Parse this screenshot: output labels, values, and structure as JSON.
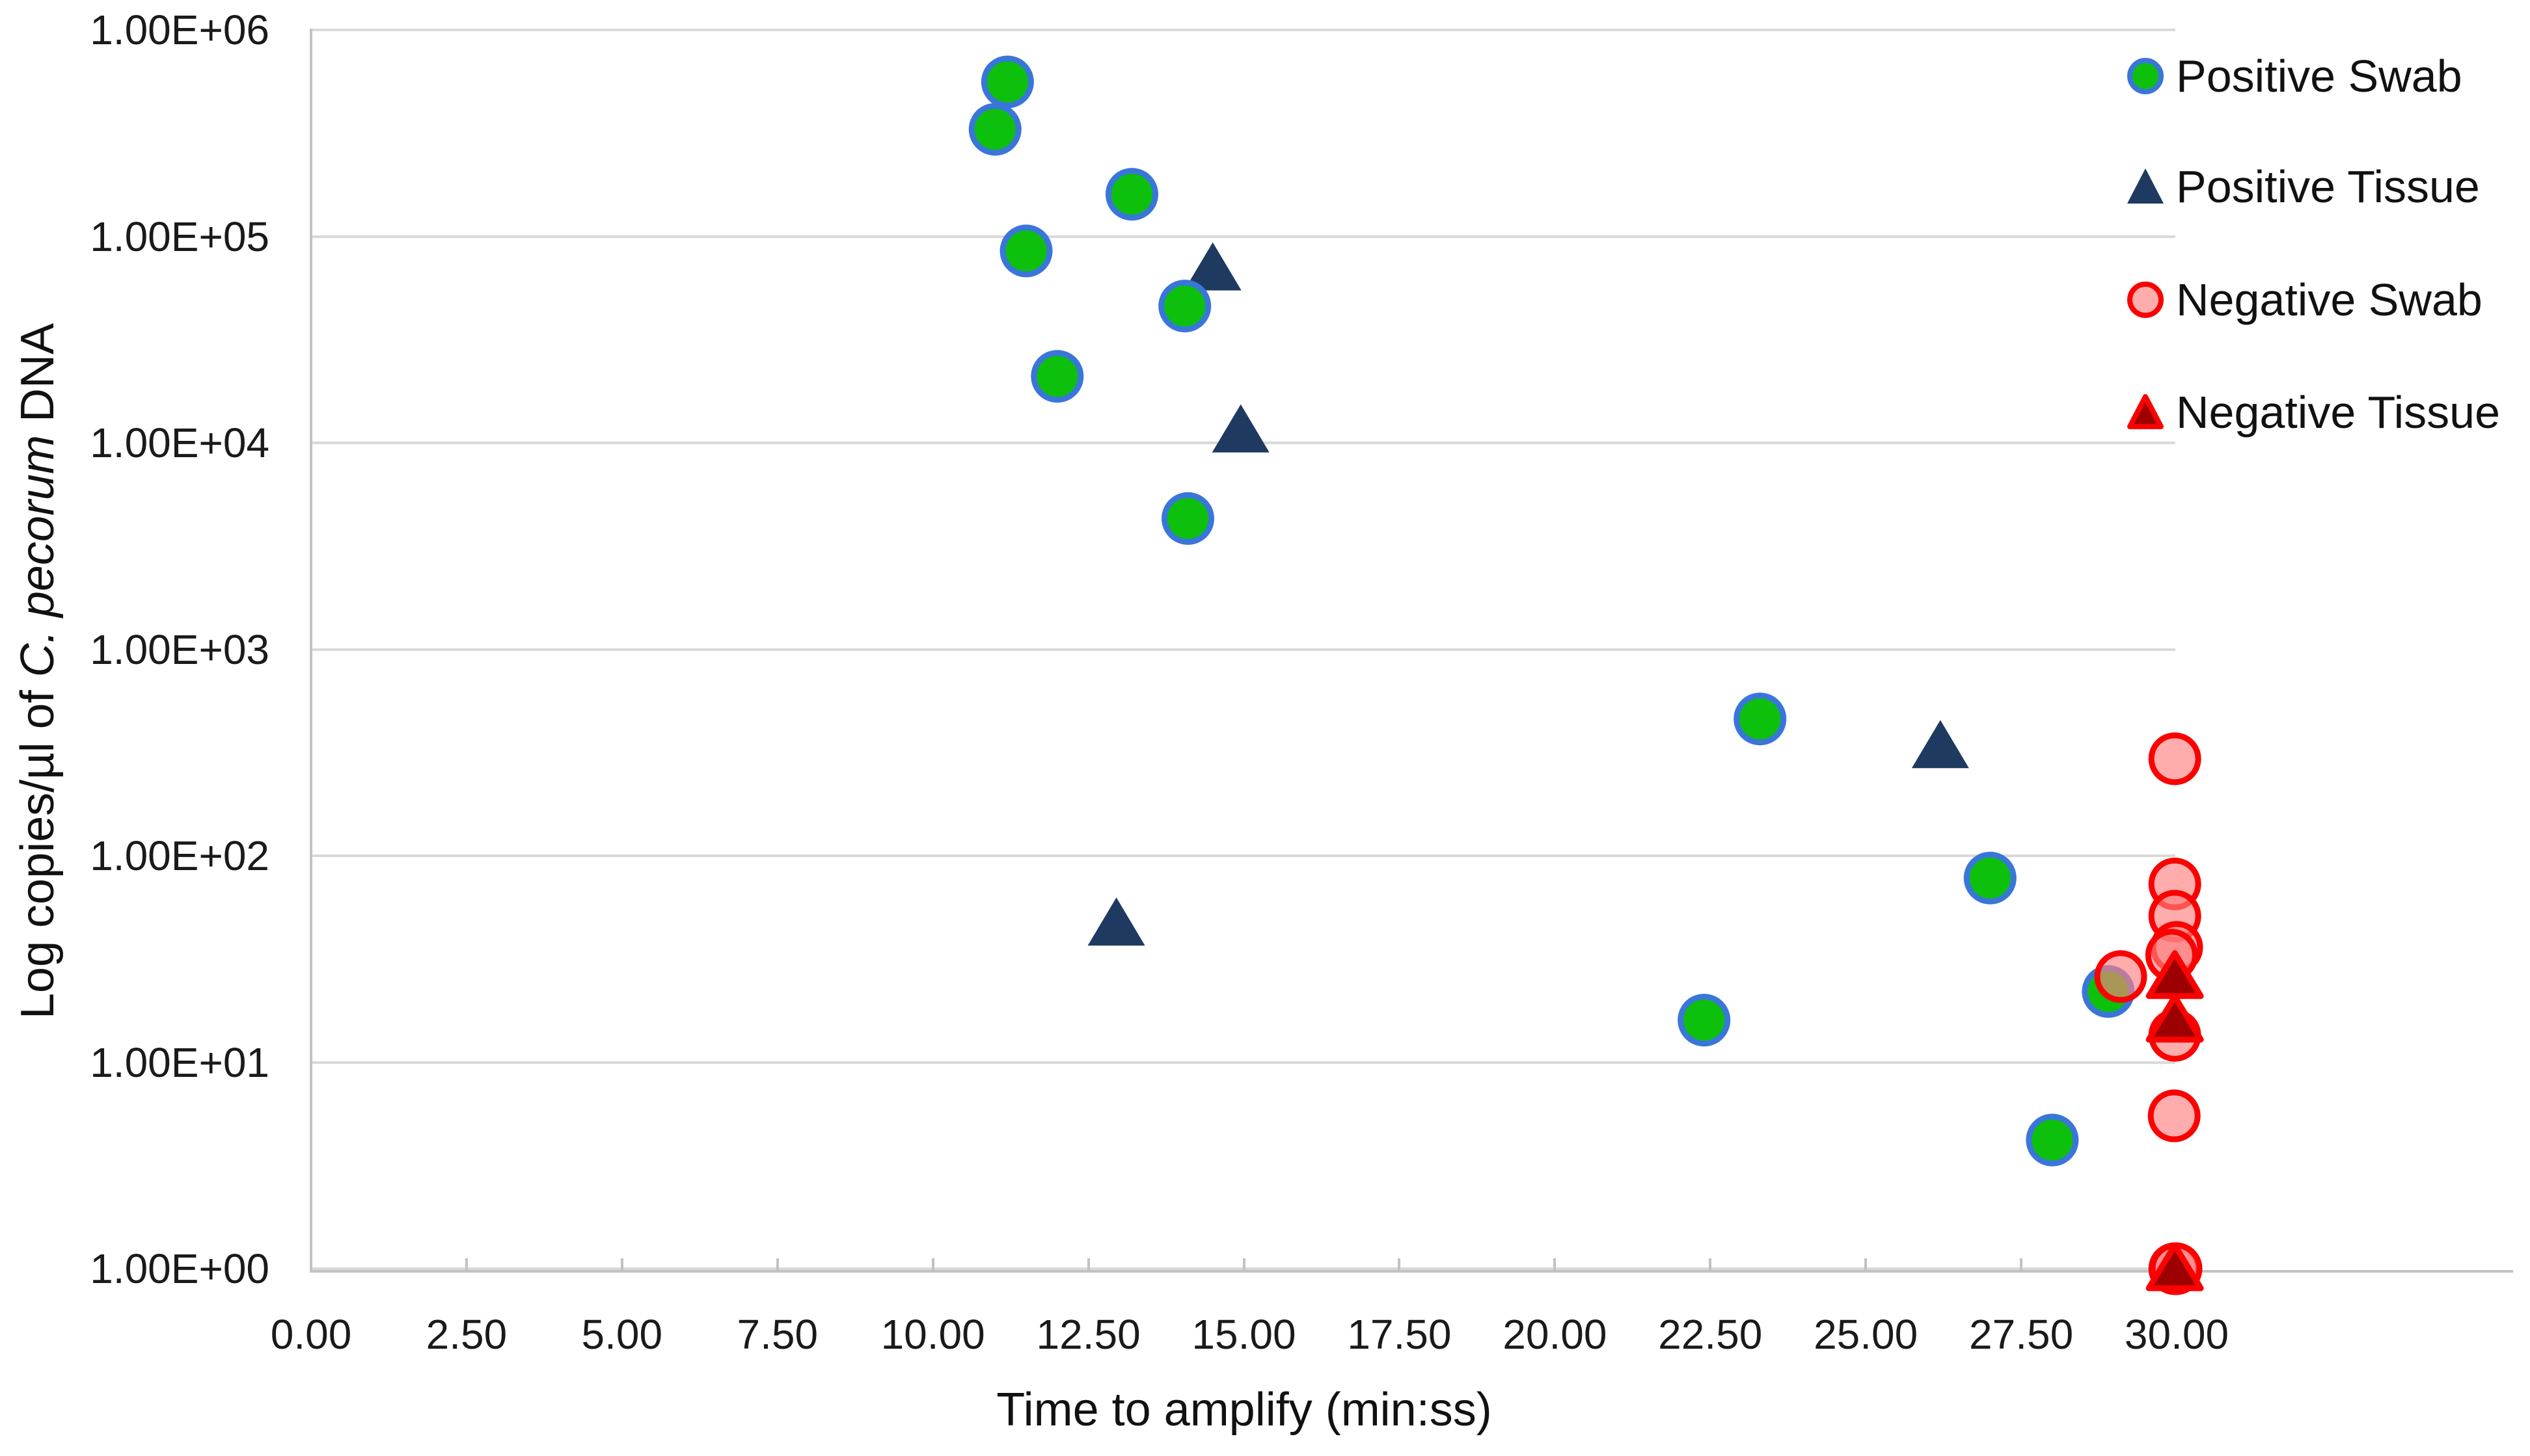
{
  "figure": {
    "background": "#ffffff",
    "x_axis": {
      "title": "Time to amplify (min:ss)",
      "tick_labels": [
        "0.00",
        "2.50",
        "5.00",
        "7.50",
        "10.00",
        "12.50",
        "15.00",
        "17.50",
        "20.00",
        "22.50",
        "25.00",
        "27.50",
        "30.00"
      ],
      "tick_values": [
        0,
        2.5,
        5,
        7.5,
        10,
        12.5,
        15,
        17.5,
        20,
        22.5,
        25,
        27.5,
        30
      ],
      "min": 0,
      "max": 30
    },
    "y_axis": {
      "title_parts": {
        "prefix": "Log copies/µl of ",
        "italic": "C. pecorum",
        "suffix": " DNA"
      },
      "tick_labels": [
        "1.00E+06",
        "1.00E+05",
        "1.00E+04",
        "1.00E+03",
        "1.00E+02",
        "1.00E+01",
        "1.00E+00"
      ],
      "tick_exponents": [
        6,
        5,
        4,
        3,
        2,
        1,
        0
      ],
      "scale": "log10"
    },
    "legend": [
      {
        "label": "Positive Swab",
        "marker": "circle",
        "fill": "#0cc00c",
        "stroke": "#3a76d9"
      },
      {
        "label": "Positive Tissue",
        "marker": "triangle",
        "fill": "#1f3a60",
        "stroke": "#1f3a60"
      },
      {
        "label": "Negative Swab",
        "marker": "circle",
        "fill": "#ffacac",
        "stroke": "#fb0202"
      },
      {
        "label": "Negative Tissue",
        "marker": "triangle",
        "fill": "#9c0000",
        "stroke": "#fb0202"
      }
    ],
    "colors": {
      "gridline": "#d9d9d9",
      "axis_line": "#c2c2c2",
      "text": "#1a1a1a"
    }
  },
  "chart_data": {
    "type": "scatter",
    "title": "",
    "xlabel": "Time to amplify (min:ss)",
    "ylabel": "Log copies/µl of C. pecorum DNA",
    "x_range": [
      0,
      30
    ],
    "y_range": [
      1,
      1000000
    ],
    "y_scale": "log",
    "grid": "horizontal-only",
    "legend_position": "upper-right-outside",
    "series": [
      {
        "name": "Positive Tissue",
        "marker": "triangle",
        "fill": "#1f3a60",
        "stroke": "#1f3a60",
        "points": [
          [
            14.5,
            70000
          ],
          [
            14.95,
            11500
          ],
          [
            26.2,
            340
          ],
          [
            12.95,
            47
          ]
        ]
      },
      {
        "name": "Positive Swab",
        "marker": "circle",
        "fill": "#0cc00c",
        "stroke": "#3a76d9",
        "points": [
          [
            11.2,
            560000
          ],
          [
            11.0,
            330000
          ],
          [
            13.2,
            160000
          ],
          [
            11.5,
            85000
          ],
          [
            14.05,
            46000
          ],
          [
            12.0,
            21000
          ],
          [
            14.1,
            4300
          ],
          [
            23.3,
            460
          ],
          [
            27.0,
            78
          ],
          [
            28.9,
            22
          ],
          [
            22.4,
            16
          ],
          [
            28.0,
            4.2
          ]
        ]
      },
      {
        "name": "Negative Swab",
        "marker": "circle",
        "fill": "#ff8080",
        "fill_opacity": 0.65,
        "stroke": "#fb0202",
        "points": [
          [
            29.97,
            295
          ],
          [
            29.97,
            73
          ],
          [
            29.97,
            51
          ],
          [
            30.0,
            36
          ],
          [
            29.92,
            33
          ],
          [
            29.1,
            26
          ],
          [
            29.97,
            13.5
          ],
          [
            29.96,
            5.5
          ],
          [
            29.97,
            1.0
          ],
          [
            29.99,
            1.0
          ]
        ]
      },
      {
        "name": "Negative Tissue",
        "marker": "triangle",
        "fill": "#9c0000",
        "stroke": "#fb0202",
        "points": [
          [
            29.97,
            26
          ],
          [
            29.97,
            16
          ],
          [
            29.97,
            1.0
          ]
        ]
      }
    ]
  }
}
